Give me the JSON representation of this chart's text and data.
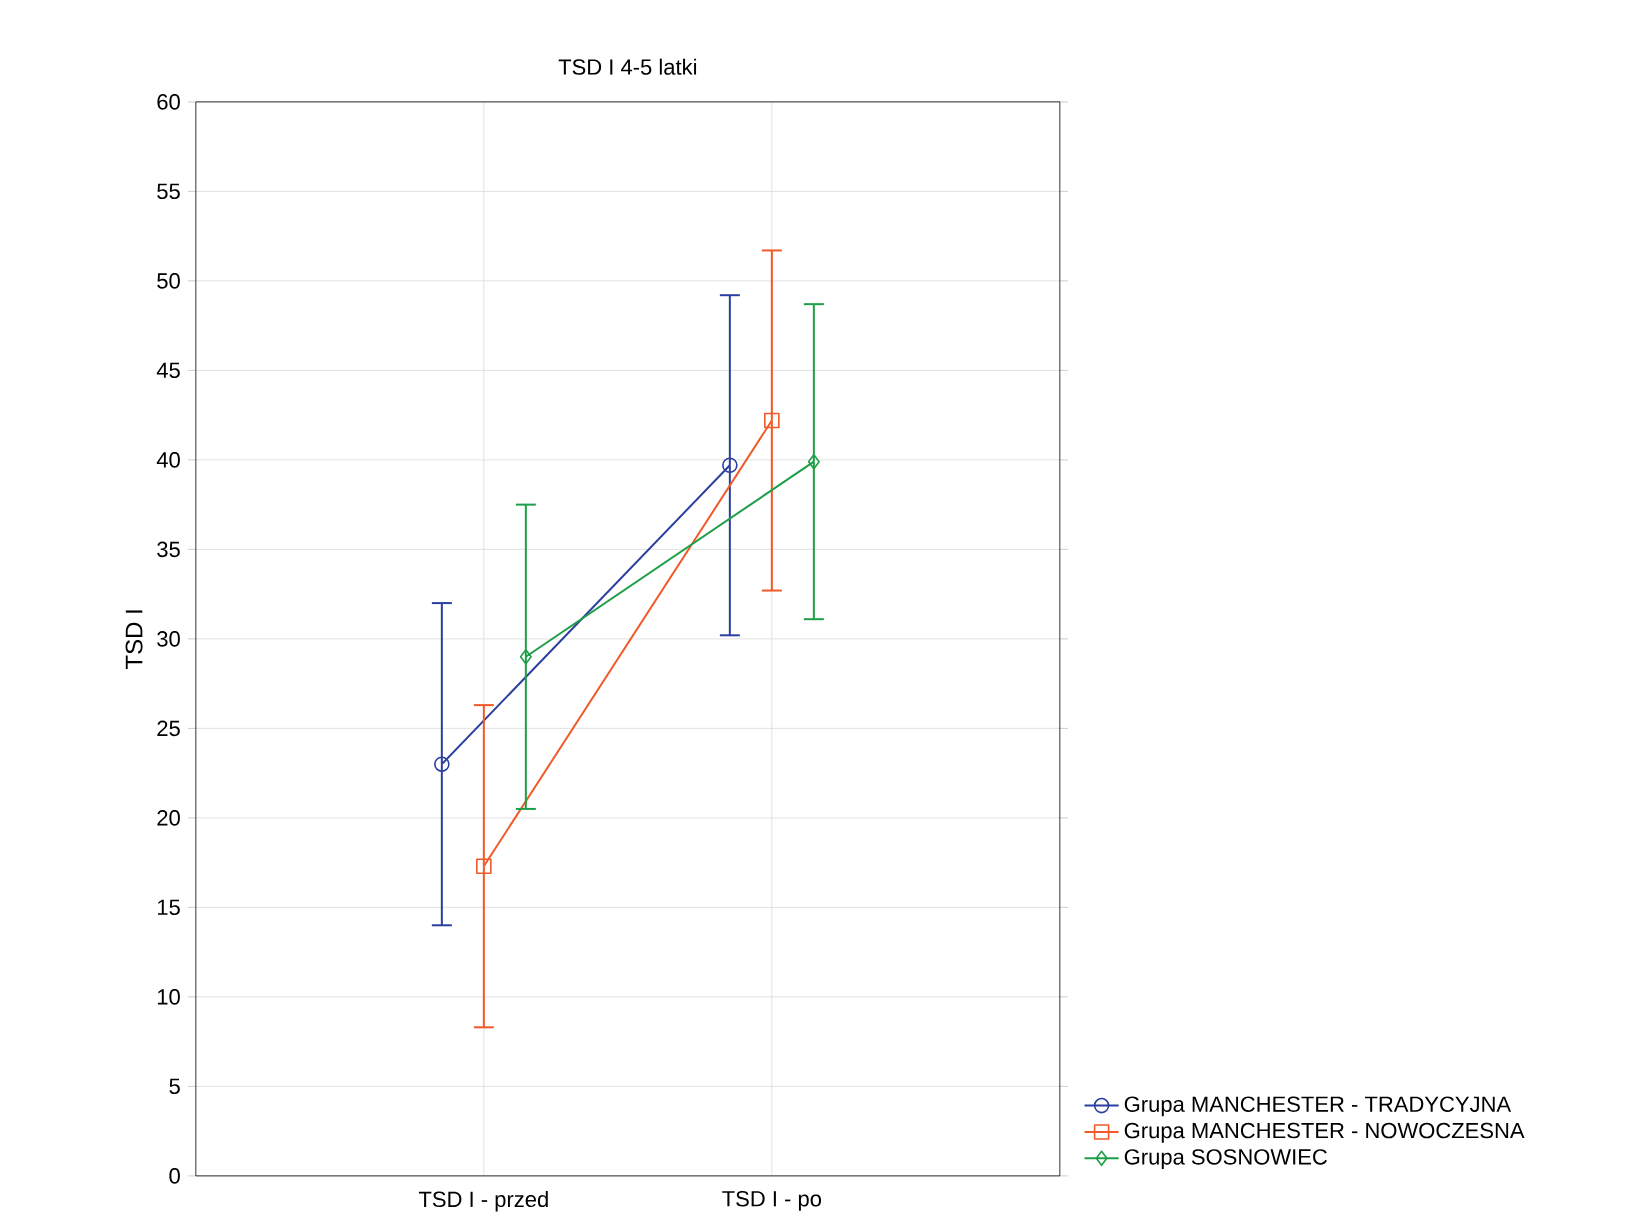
{
  "chart_data": {
    "type": "line",
    "title": "TSD I 4-5 latki",
    "ylabel": "TSD I",
    "categories": [
      "TSD I - przed",
      "TSD I - po"
    ],
    "series": [
      {
        "name": "Grupa MANCHESTER - TRADYCYJNA",
        "color": "#2b3f9e",
        "marker": "circle",
        "values": [
          23,
          39.7
        ],
        "errors": [
          9,
          9.5
        ]
      },
      {
        "name": "Grupa MANCHESTER - NOWOCZESNA",
        "color": "#f05a28",
        "marker": "square",
        "values": [
          17.3,
          42.2
        ],
        "errors": [
          9,
          9.5
        ]
      },
      {
        "name": "Grupa SOSNOWIEC",
        "color": "#1e9e48",
        "marker": "diamond",
        "values": [
          29,
          39.9
        ],
        "errors": [
          8.5,
          8.8
        ]
      }
    ],
    "ylim": [
      0,
      60
    ],
    "yticks": [
      0,
      5,
      10,
      15,
      20,
      25,
      30,
      35,
      40,
      45,
      50,
      55,
      60
    ],
    "grid": true,
    "legend": "bottom right"
  }
}
